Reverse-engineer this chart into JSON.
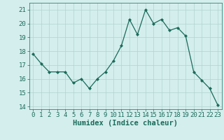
{
  "x": [
    0,
    1,
    2,
    3,
    4,
    5,
    6,
    7,
    8,
    9,
    10,
    11,
    12,
    13,
    14,
    15,
    16,
    17,
    18,
    19,
    20,
    21,
    22,
    23
  ],
  "y": [
    17.8,
    17.1,
    16.5,
    16.5,
    16.5,
    15.7,
    16.0,
    15.3,
    16.0,
    16.5,
    17.3,
    18.4,
    20.3,
    19.2,
    21.0,
    20.0,
    20.3,
    19.5,
    19.7,
    19.1,
    16.5,
    15.9,
    15.3,
    14.1
  ],
  "line_color": "#1a6b5a",
  "marker": "D",
  "marker_size": 2,
  "bg_color": "#d4eeed",
  "grid_color": "#aed4cf",
  "axis_color": "#1a6b5a",
  "xlabel": "Humidex (Indice chaleur)",
  "ylim": [
    13.8,
    21.5
  ],
  "yticks": [
    14,
    15,
    16,
    17,
    18,
    19,
    20,
    21
  ],
  "xticks": [
    0,
    1,
    2,
    3,
    4,
    5,
    6,
    7,
    8,
    9,
    10,
    11,
    12,
    13,
    14,
    15,
    16,
    17,
    18,
    19,
    20,
    21,
    22,
    23
  ],
  "font_size": 6.5,
  "label_font_size": 7.5
}
